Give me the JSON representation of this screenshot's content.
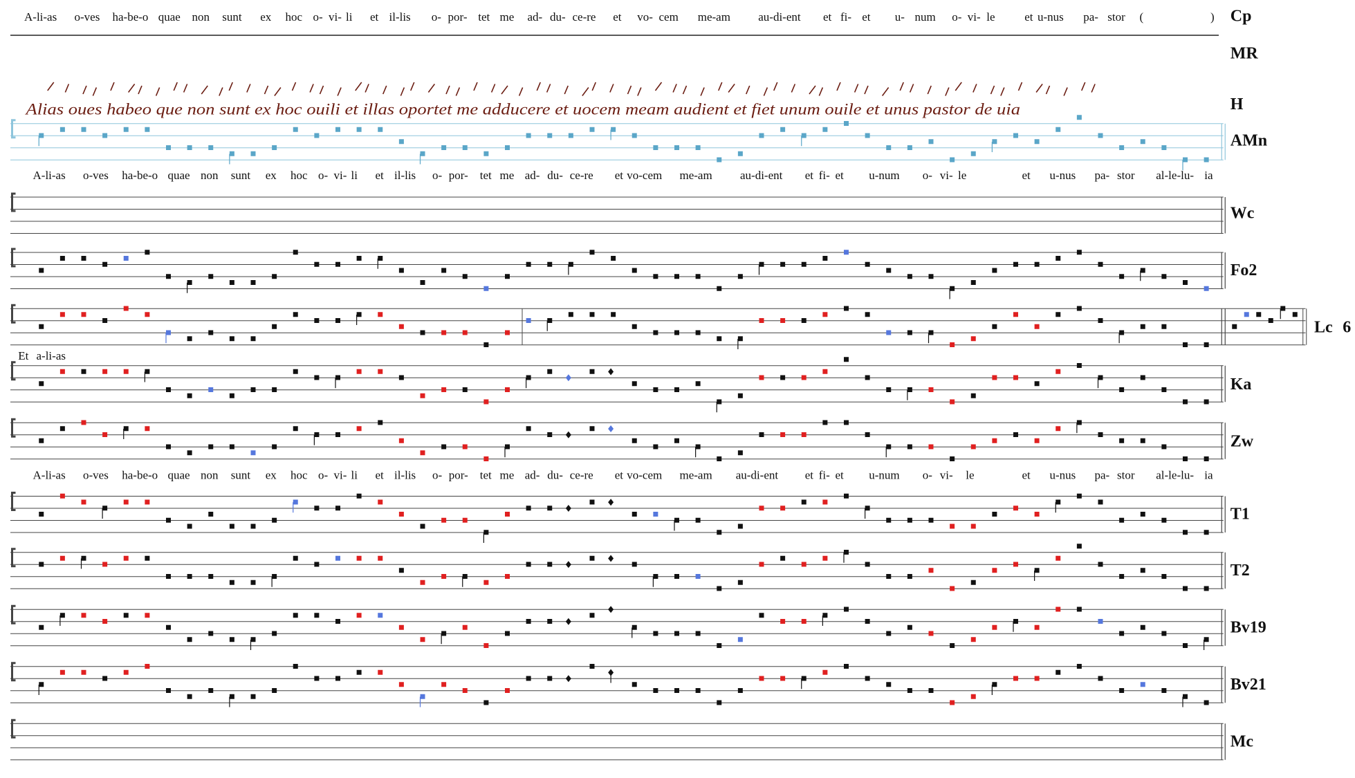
{
  "lyrics": [
    {
      "words": [
        "A-li-as",
        "o-ves",
        "ha-be-o",
        "quae",
        "non",
        "sunt",
        "ex",
        "hoc",
        "o-",
        "vi-",
        "li",
        "et",
        "il-lis",
        "o-",
        "por-",
        "tet",
        "me",
        "ad-",
        "du-",
        "ce-re",
        "et",
        "vo-",
        "cem",
        "me-am",
        "au-di-ent",
        "et",
        "fi-",
        "et",
        "u-",
        "num",
        "o-",
        "vi-",
        "le",
        "et",
        "u-nus",
        "pa-",
        "stor",
        "(",
        ")"
      ]
    },
    {
      "words": [
        "A-li-as",
        "o-ves",
        "ha-be-o",
        "quae",
        "non",
        "sunt",
        "ex",
        "hoc",
        "o-",
        "vi-",
        "li",
        "et",
        "il-lis",
        "o-",
        "por-",
        "tet",
        "me",
        "ad-",
        "du-",
        "ce-re",
        "et",
        "vo-cem",
        "me-am",
        "au-di-ent",
        "et",
        "fi-",
        "et",
        "u-num",
        "o-",
        "vi-",
        "le",
        "et",
        "u-nus",
        "pa-",
        "stor",
        "al-le-lu-",
        "ia"
      ]
    },
    {
      "words": [
        "A-li-as",
        "o-ves",
        "ha-be-o",
        "quae",
        "non",
        "sunt",
        "ex",
        "hoc",
        "o-",
        "vi-",
        "li",
        "et",
        "il-lis",
        "o-",
        "por-",
        "tet",
        "me",
        "ad-",
        "du-",
        "ce-re",
        "et",
        "vo-cem",
        "me-am",
        "au-di-ent",
        "et",
        "fi-",
        "et",
        "u-num",
        "o-",
        "vi-",
        "le",
        "et",
        "u-nus",
        "pa-",
        "stor",
        "al-le-lu-",
        "ia"
      ]
    }
  ],
  "staves": [
    {
      "label": "Cp"
    },
    {
      "label": "MR"
    },
    {
      "label": "H"
    },
    {
      "label": "AMn"
    },
    {
      "label": "Wc"
    },
    {
      "label": "Fo2"
    },
    {
      "label": "Lc"
    },
    {
      "label": "Ka"
    },
    {
      "label": "Zw"
    },
    {
      "label": "T1"
    },
    {
      "label": "T2"
    },
    {
      "label": "Bv19"
    },
    {
      "label": "Bv21"
    },
    {
      "label": "Mc"
    }
  ],
  "lc_number": "6",
  "incipit": {
    "et": "Et",
    "text": "a-li-as"
  },
  "manuscript_text": "Alias oues habeo que non sunt ex hoc ouili et illas oportet me adducere et uocem meam audient et fiet unum ouile et unus pastor de uia"
}
